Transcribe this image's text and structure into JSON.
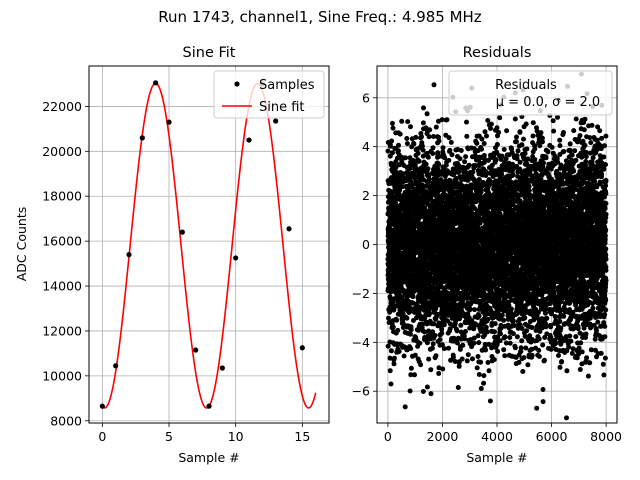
{
  "figure_title": "Run 1743, channel1, Sine Freq.: 4.985 MHz",
  "chart_data": [
    {
      "type": "scatter",
      "title": "Sine Fit",
      "xlabel": "Sample #",
      "ylabel": "ADC Counts",
      "xlim": [
        -1,
        17
      ],
      "ylim": [
        7900,
        23800
      ],
      "xticks": [
        0,
        5,
        10,
        15
      ],
      "yticks": [
        8000,
        10000,
        12000,
        14000,
        16000,
        18000,
        20000,
        22000
      ],
      "grid": true,
      "legend_position": "top-right",
      "series": [
        {
          "name": "Samples",
          "kind": "points",
          "color": "#000000",
          "x": [
            0,
            1,
            2,
            3,
            4,
            5,
            6,
            7,
            8,
            9,
            10,
            11,
            12,
            13,
            14,
            15
          ],
          "y": [
            8650,
            10450,
            15400,
            20600,
            23050,
            21300,
            16400,
            11150,
            8650,
            10350,
            15250,
            20500,
            23000,
            21350,
            16550,
            11250
          ]
        },
        {
          "name": "Sine fit",
          "kind": "curve",
          "color": "#ff0000",
          "fit": {
            "offset": 15800,
            "amplitude": 7230,
            "period": 7.65,
            "phase": 0.17,
            "x_from": 0,
            "x_to": 16
          }
        }
      ]
    },
    {
      "type": "scatter",
      "title": "Residuals",
      "xlabel": "Sample #",
      "ylabel": "",
      "xlim": [
        -400,
        8400
      ],
      "ylim": [
        -7.3,
        7.3
      ],
      "xticks": [
        0,
        2000,
        4000,
        6000,
        8000
      ],
      "yticks": [
        -6,
        -4,
        -2,
        0,
        2,
        4,
        6
      ],
      "grid": true,
      "legend_position": "top-right",
      "series": [
        {
          "name": "Residuals",
          "legend_line2": "μ = 0.0, σ = 2.0",
          "color": "#000000",
          "distribution": {
            "mean": 0.0,
            "std": 2.0,
            "n_points": 8000,
            "x_min": 0,
            "x_max": 8000
          }
        }
      ]
    }
  ]
}
